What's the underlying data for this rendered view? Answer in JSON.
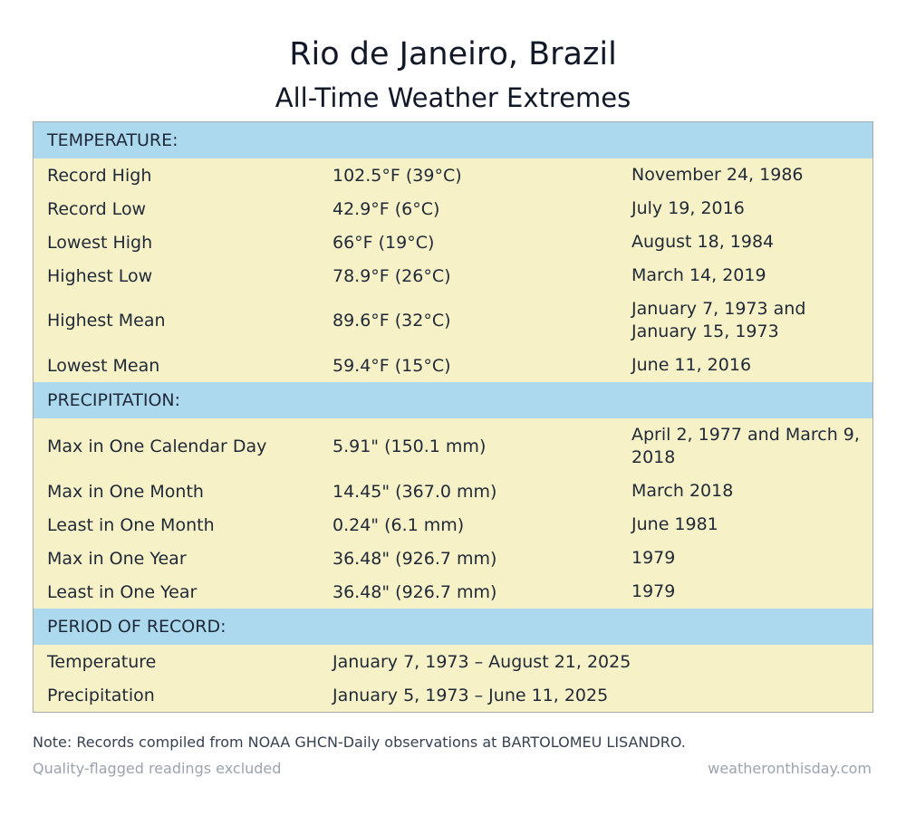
{
  "title": "Rio de Janeiro, Brazil",
  "subtitle": "All-Time Weather Extremes",
  "temperature": {
    "header": "TEMPERATURE:",
    "rows": [
      {
        "label": "Record High",
        "value": "102.5°F (39°C)",
        "date": "November 24, 1986"
      },
      {
        "label": "Record Low",
        "value": "42.9°F (6°C)",
        "date": "July 19, 2016"
      },
      {
        "label": "Lowest High",
        "value": "66°F (19°C)",
        "date": "August 18, 1984"
      },
      {
        "label": "Highest Low",
        "value": "78.9°F (26°C)",
        "date": "March 14, 2019"
      },
      {
        "label": "Highest Mean",
        "value": "89.6°F (32°C)",
        "date": "January 7, 1973 and January 15, 1973"
      },
      {
        "label": "Lowest Mean",
        "value": "59.4°F (15°C)",
        "date": "June 11, 2016"
      }
    ]
  },
  "precipitation": {
    "header": "PRECIPITATION:",
    "rows": [
      {
        "label": "Max in One Calendar Day",
        "value": "5.91\" (150.1 mm)",
        "date": "April 2, 1977 and March 9, 2018"
      },
      {
        "label": "Max in One Month",
        "value": "14.45\" (367.0 mm)",
        "date": "March 2018"
      },
      {
        "label": "Least in One Month",
        "value": "0.24\" (6.1 mm)",
        "date": "June 1981"
      },
      {
        "label": "Max in One Year",
        "value": "36.48\" (926.7 mm)",
        "date": "1979"
      },
      {
        "label": "Least in One Year",
        "value": "36.48\" (926.7 mm)",
        "date": "1979"
      }
    ]
  },
  "period": {
    "header": "PERIOD OF RECORD:",
    "rows": [
      {
        "label": "Temperature",
        "value": "January 7, 1973 – August 21, 2025"
      },
      {
        "label": "Precipitation",
        "value": "January 5, 1973 – June 11, 2025"
      }
    ]
  },
  "note": "Note: Records compiled from NOAA GHCN-Daily observations at BARTOLOMEU LISANDRO.",
  "footer": {
    "left": "Quality-flagged readings excluded",
    "right": "weatheronthisday.com"
  }
}
